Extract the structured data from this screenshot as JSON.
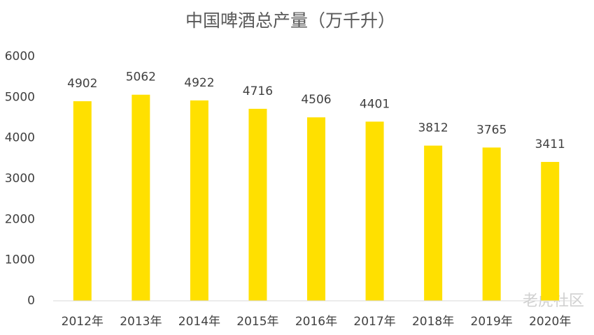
{
  "chart_data": {
    "type": "bar",
    "title": "中国啤酒总产量（万千升）",
    "categories": [
      "2012年",
      "2013年",
      "2014年",
      "2015年",
      "2016年",
      "2017年",
      "2018年",
      "2019年",
      "2020年"
    ],
    "values": [
      4902,
      5062,
      4922,
      4716,
      4506,
      4401,
      3812,
      3765,
      3411
    ],
    "color": "#ffe000",
    "ylim": [
      0,
      6000
    ],
    "yticks": [
      0,
      1000,
      2000,
      3000,
      4000,
      5000,
      6000
    ],
    "grid": false
  },
  "watermark": "老虎社区"
}
